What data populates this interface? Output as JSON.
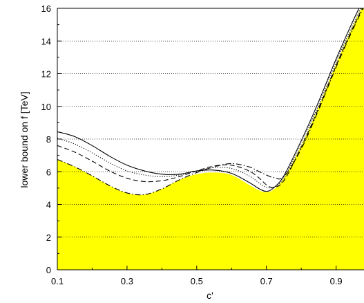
{
  "chart_data": {
    "type": "line",
    "xlabel": "c'",
    "ylabel": "lower bound on f  [TeV]",
    "xlim": [
      0.1,
      0.98
    ],
    "ylim": [
      0,
      16
    ],
    "x_ticks": [
      0.1,
      0.3,
      0.5,
      0.7,
      0.9
    ],
    "x_tick_labels": [
      "0.1",
      "0.3",
      "0.5",
      "0.7",
      "0.9"
    ],
    "y_ticks": [
      0,
      2,
      4,
      6,
      8,
      10,
      12,
      14,
      16
    ],
    "y_tick_labels": [
      "0",
      "2",
      "4",
      "6",
      "8",
      "10",
      "12",
      "14",
      "16"
    ],
    "grid": "horizontal dotted at major y ticks",
    "fill_color": "#ffff00",
    "filled_region": {
      "x": [
        0.1,
        0.15,
        0.2,
        0.25,
        0.3,
        0.35,
        0.4,
        0.45,
        0.5,
        0.55,
        0.6,
        0.65,
        0.68,
        0.7,
        0.72,
        0.75,
        0.8,
        0.85,
        0.9,
        0.95,
        0.98
      ],
      "y": [
        6.75,
        6.3,
        5.75,
        5.15,
        4.7,
        4.6,
        4.95,
        5.5,
        5.85,
        5.95,
        5.8,
        5.2,
        4.85,
        4.75,
        4.9,
        5.6,
        7.6,
        10.0,
        12.6,
        15.0,
        16.3
      ]
    },
    "series": [
      {
        "style": "solid",
        "x": [
          0.1,
          0.15,
          0.2,
          0.25,
          0.3,
          0.35,
          0.4,
          0.45,
          0.5,
          0.55,
          0.6,
          0.65,
          0.68,
          0.7,
          0.72,
          0.75,
          0.8,
          0.85,
          0.9,
          0.95,
          0.98
        ],
        "y": [
          8.45,
          8.15,
          7.6,
          6.95,
          6.4,
          6.05,
          5.85,
          5.85,
          6.05,
          6.1,
          5.9,
          5.35,
          4.95,
          4.8,
          5.0,
          5.75,
          7.9,
          10.3,
          12.9,
          15.3,
          16.6
        ]
      },
      {
        "style": "dotted",
        "x": [
          0.1,
          0.15,
          0.2,
          0.25,
          0.3,
          0.35,
          0.4,
          0.45,
          0.5,
          0.55,
          0.6,
          0.65,
          0.68,
          0.7,
          0.72,
          0.75,
          0.8,
          0.85,
          0.9,
          0.95,
          0.98
        ],
        "y": [
          8.05,
          7.7,
          7.15,
          6.55,
          6.05,
          5.8,
          5.7,
          5.8,
          6.05,
          6.25,
          6.2,
          5.75,
          5.3,
          5.05,
          5.05,
          5.6,
          7.7,
          10.1,
          12.7,
          15.1,
          16.4
        ]
      },
      {
        "style": "dashed",
        "x": [
          0.1,
          0.15,
          0.2,
          0.25,
          0.3,
          0.35,
          0.4,
          0.45,
          0.5,
          0.55,
          0.6,
          0.65,
          0.68,
          0.7,
          0.72,
          0.75,
          0.8,
          0.85,
          0.9,
          0.95,
          0.98
        ],
        "y": [
          7.6,
          7.2,
          6.65,
          6.05,
          5.6,
          5.4,
          5.45,
          5.7,
          6.05,
          6.35,
          6.4,
          6.05,
          5.6,
          5.2,
          5.05,
          5.45,
          7.5,
          9.9,
          12.5,
          14.9,
          16.2
        ]
      },
      {
        "style": "dash-dot",
        "x": [
          0.1,
          0.15,
          0.2,
          0.25,
          0.3,
          0.35,
          0.4,
          0.45,
          0.5,
          0.55,
          0.6,
          0.65,
          0.68,
          0.7,
          0.72,
          0.75,
          0.8,
          0.85,
          0.9,
          0.95,
          0.98
        ],
        "y": [
          6.75,
          6.3,
          5.75,
          5.15,
          4.7,
          4.6,
          4.95,
          5.5,
          5.95,
          6.3,
          6.5,
          6.3,
          6.0,
          5.8,
          5.65,
          5.7,
          7.4,
          9.8,
          12.4,
          14.8,
          16.1
        ]
      }
    ]
  }
}
